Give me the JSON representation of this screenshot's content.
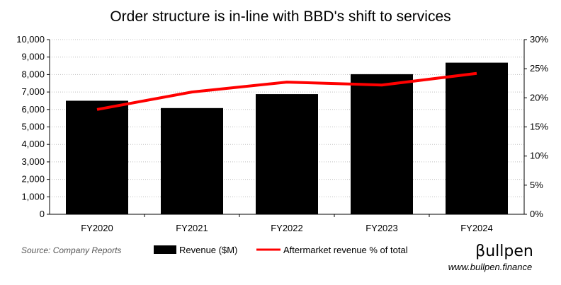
{
  "chart_data": {
    "type": "bar",
    "title": "Order structure is in-line with BBD's shift to services",
    "categories": [
      "FY2020",
      "FY2021",
      "FY2022",
      "FY2023",
      "FY2024"
    ],
    "series": [
      {
        "name": "Revenue ($M)",
        "type": "bar",
        "axis": "left",
        "color": "#000000",
        "values": [
          6500,
          6080,
          6880,
          8020,
          8680
        ]
      },
      {
        "name": "Aftermarket revenue % of total",
        "type": "line",
        "axis": "right",
        "color": "#ff0000",
        "values": [
          18.0,
          21.0,
          22.7,
          22.2,
          24.2
        ]
      }
    ],
    "y_left": {
      "ylim": [
        0,
        10000
      ],
      "ticks": [
        "0",
        "1,000",
        "2,000",
        "3,000",
        "4,000",
        "5,000",
        "6,000",
        "7,000",
        "8,000",
        "9,000",
        "10,000"
      ]
    },
    "y_right": {
      "ylim": [
        0,
        30
      ],
      "ticks": [
        "0%",
        "5%",
        "10%",
        "15%",
        "20%",
        "25%",
        "30%"
      ]
    },
    "grid": true,
    "legend": "bottom-center"
  },
  "footer": {
    "source": "Source: Company Reports",
    "brand": "βullpen",
    "website": "www.bullpen.finance"
  }
}
